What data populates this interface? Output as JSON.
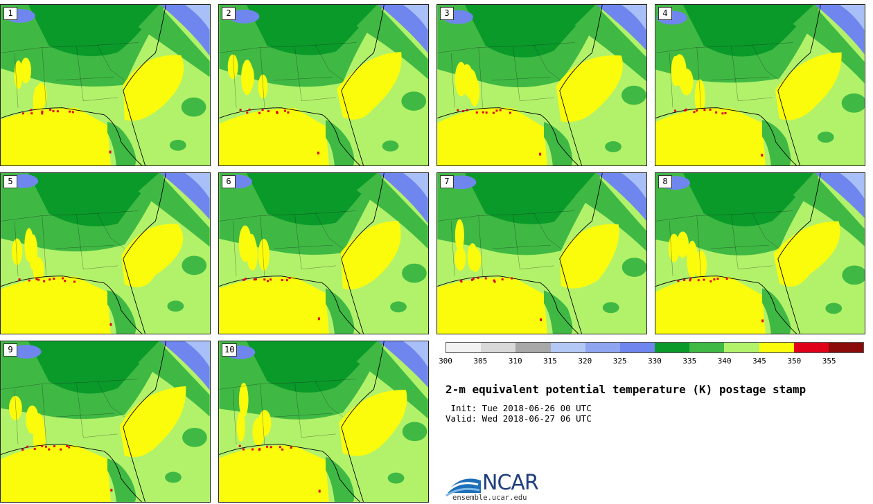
{
  "panels": [
    {
      "label": "1"
    },
    {
      "label": "2"
    },
    {
      "label": "3"
    },
    {
      "label": "4"
    },
    {
      "label": "5"
    },
    {
      "label": "6"
    },
    {
      "label": "7"
    },
    {
      "label": "8"
    },
    {
      "label": "9"
    },
    {
      "label": "10"
    }
  ],
  "colors": {
    "land_moist": "#b2f26a",
    "warm": "#fbfb0c",
    "green_mid": "#3fb944",
    "green_dark": "#0a9a2a",
    "blue_mid": "#6f86ee",
    "blue_light": "#a9bff7",
    "red": "#e0001a",
    "border": "#1a1a1a"
  },
  "colorbar": {
    "colors": [
      "#f2f2f2",
      "#d9d9d9",
      "#a8a8a8",
      "#b4c8f6",
      "#8fa5f1",
      "#6f86ee",
      "#0a9a2a",
      "#3fb944",
      "#b2f26a",
      "#fbfb0c",
      "#e0001a",
      "#8b0a0a"
    ],
    "ticks": [
      "300",
      "305",
      "310",
      "315",
      "320",
      "325",
      "330",
      "335",
      "340",
      "345",
      "350",
      "355"
    ]
  },
  "title": "2-m equivalent potential temperature (K) postage stamp",
  "init": " Init: Tue 2018-06-26 00 UTC",
  "valid": "Valid: Wed 2018-06-27 06 UTC",
  "logo": {
    "text": "NCAR",
    "url": "ensemble.ucar.edu"
  }
}
